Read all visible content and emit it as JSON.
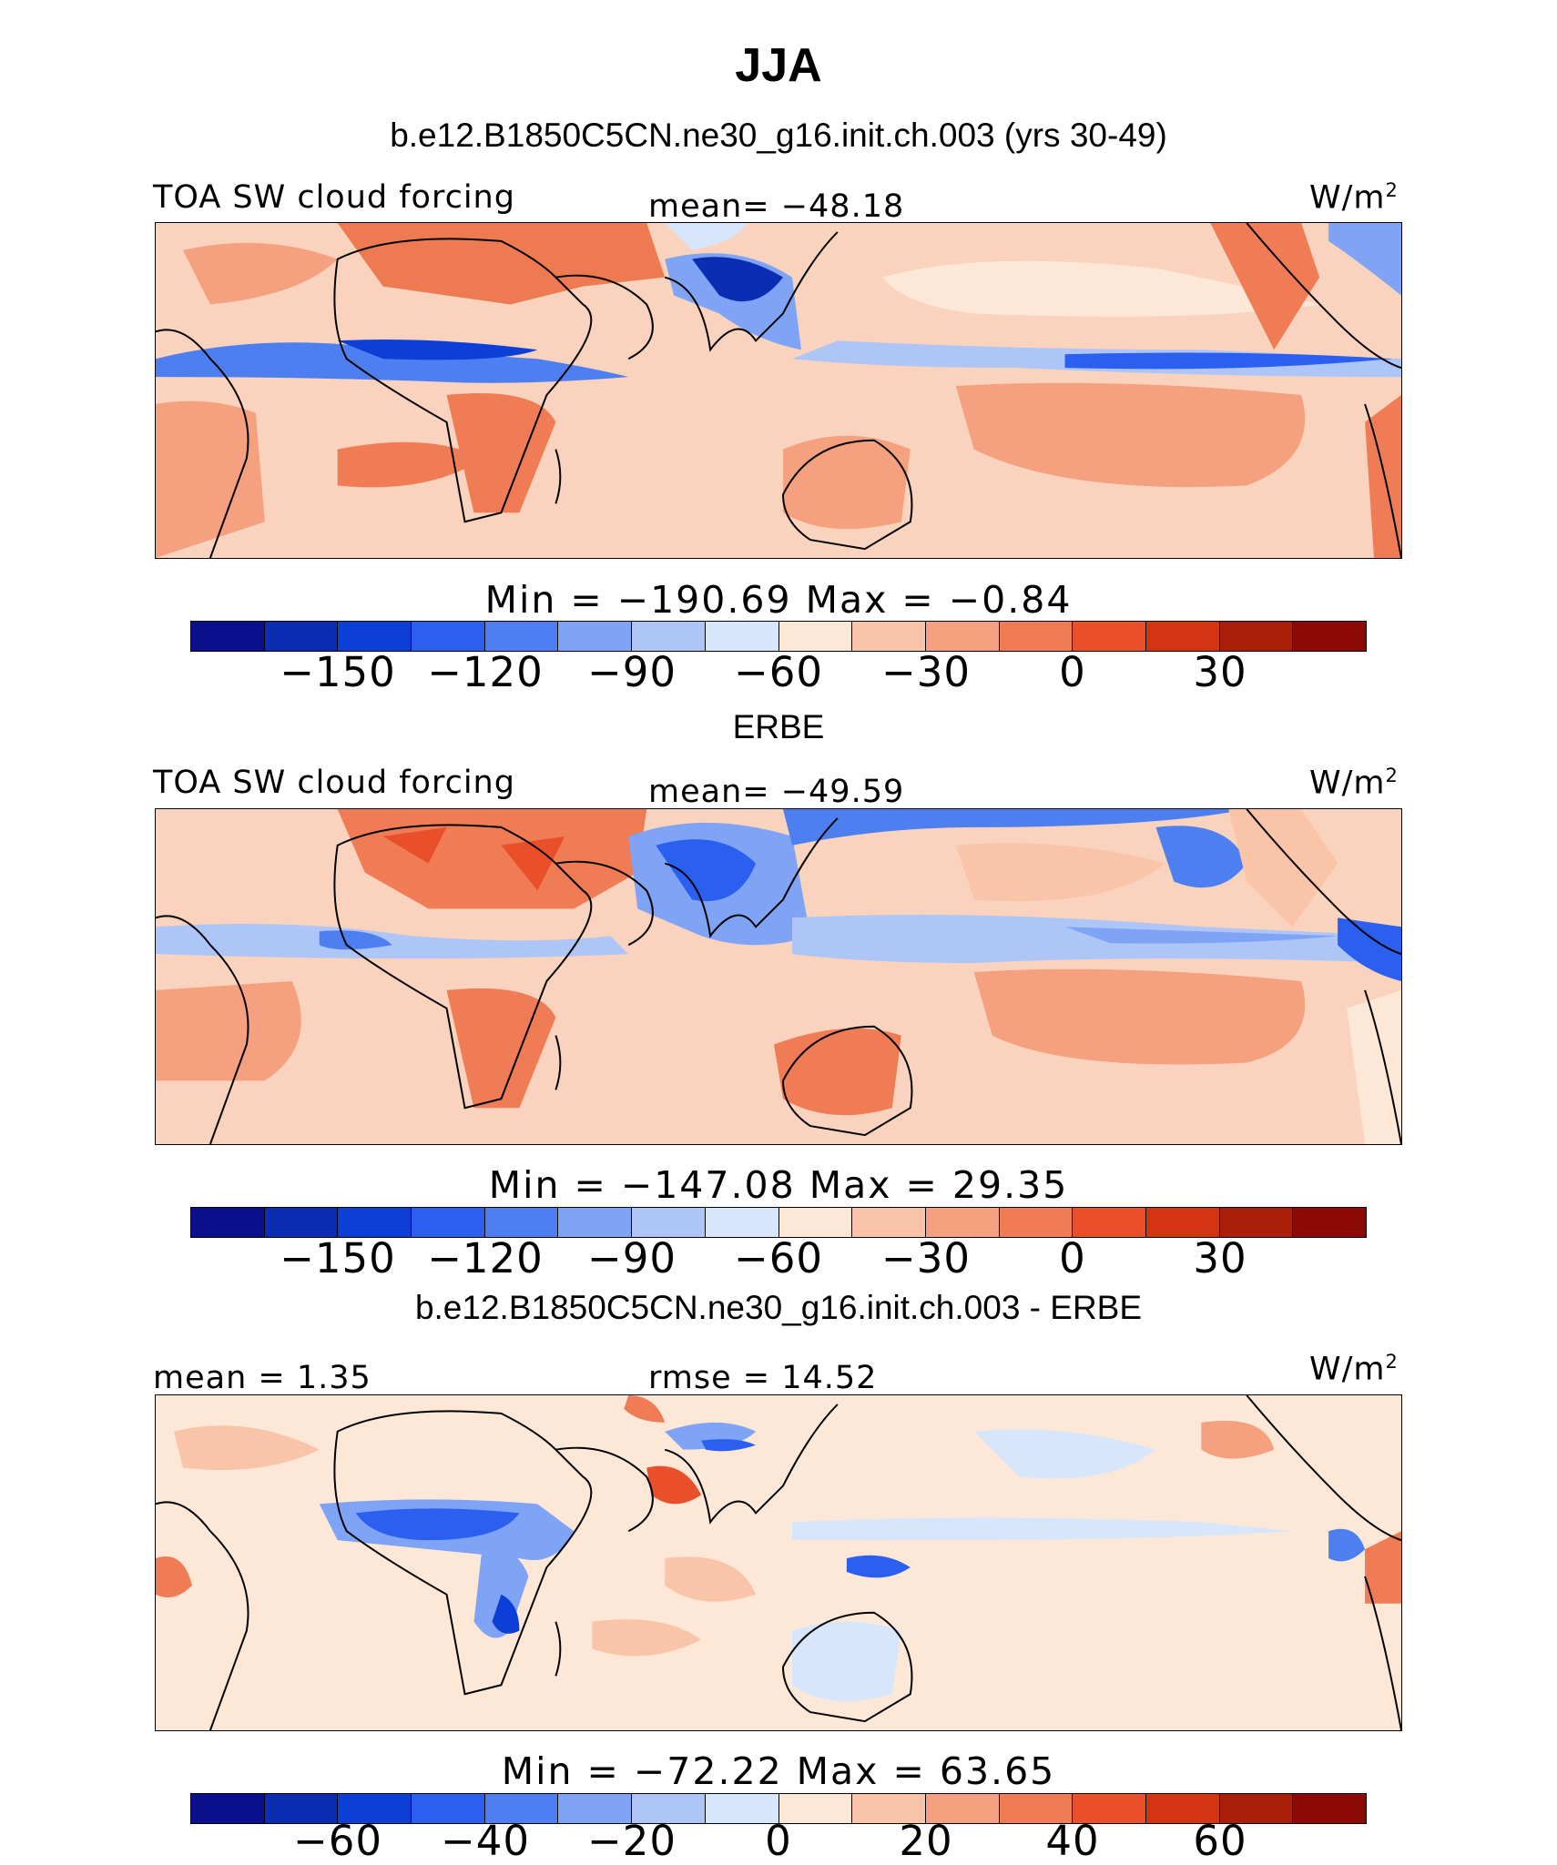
{
  "figure": {
    "title": "JJA",
    "panels": [
      {
        "heading": "b.e12.B1850C5CN.ne30_g16.init.ch.003 (yrs 30-49)",
        "left_label": "TOA SW cloud forcing",
        "center_label": "mean= −48.18",
        "units": "W/m",
        "units_sup": "2",
        "min_max": "Min = −190.69 Max = −0.84",
        "colorbar_ticks": [
          "−150",
          "−120",
          "−90",
          "−60",
          "−30",
          "0",
          "30"
        ]
      },
      {
        "heading": "ERBE",
        "left_label": "TOA SW cloud forcing",
        "center_label": "mean= −49.59",
        "units": "W/m",
        "units_sup": "2",
        "min_max": "Min = −147.08 Max = 29.35",
        "colorbar_ticks": [
          "−150",
          "−120",
          "−90",
          "−60",
          "−30",
          "0",
          "30"
        ]
      },
      {
        "heading": "b.e12.B1850C5CN.ne30_g16.init.ch.003 - ERBE",
        "left_label": "mean = 1.35",
        "center_label": "rmse = 14.52",
        "units": "W/m",
        "units_sup": "2",
        "min_max": "Min = −72.22 Max = 63.65",
        "colorbar_ticks": [
          "−60",
          "−40",
          "−20",
          "0",
          "20",
          "40",
          "60"
        ]
      }
    ],
    "colorbar_colors": [
      "#0a0f8c",
      "#0a2db4",
      "#0c3fd8",
      "#2a5fef",
      "#4d7ff0",
      "#7fa4f5",
      "#aec5f8",
      "#d8e6fb",
      "#fde8d8",
      "#f9c4a8",
      "#f5a07e",
      "#f07c55",
      "#e9502a",
      "#d33412",
      "#aa1e0a",
      "#8c0a05"
    ]
  }
}
